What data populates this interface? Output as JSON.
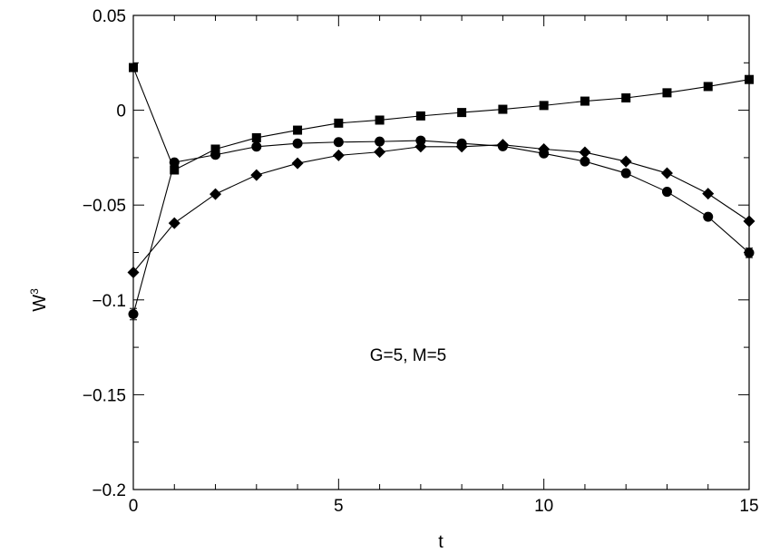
{
  "chart_data": {
    "type": "line",
    "title": "",
    "xlabel": "t",
    "ylabel": "W",
    "ylabel_superscript": "3",
    "annotation": "G=5, M=5",
    "xlim": [
      0,
      15
    ],
    "ylim": [
      -0.2,
      0.05
    ],
    "xticks": [
      0,
      5,
      10,
      15
    ],
    "xtick_labels": [
      "0",
      "5",
      "10",
      "15"
    ],
    "yticks": [
      -0.2,
      -0.15,
      -0.1,
      -0.05,
      0,
      0.05
    ],
    "ytick_labels": [
      "−0.2",
      "−0.15",
      "−0.1",
      "−0.05",
      "0",
      "0.05"
    ],
    "x_minor_step": 1,
    "y_minor_step": 0.025,
    "grid": false,
    "x": [
      0,
      1,
      2,
      3,
      4,
      5,
      6,
      7,
      8,
      9,
      10,
      11,
      12,
      13,
      14,
      15
    ],
    "series": [
      {
        "marker": "square",
        "values": [
          0.0225,
          -0.0315,
          -0.0205,
          -0.0145,
          -0.0105,
          -0.0068,
          -0.0052,
          -0.003,
          -0.0012,
          0.0005,
          0.0025,
          0.0048,
          0.0065,
          0.0092,
          0.0125,
          0.0162
        ]
      },
      {
        "marker": "circle",
        "values": [
          -0.1075,
          -0.0275,
          -0.0235,
          -0.0192,
          -0.0175,
          -0.0168,
          -0.0165,
          -0.016,
          -0.0175,
          -0.019,
          -0.0228,
          -0.027,
          -0.0332,
          -0.043,
          -0.0562,
          -0.0752
        ],
        "error": [
          0.003,
          0,
          0,
          0,
          0,
          0,
          0,
          0,
          0,
          0,
          0,
          0,
          0,
          0,
          0,
          0.0025
        ]
      },
      {
        "marker": "diamond",
        "values": [
          -0.0855,
          -0.0595,
          -0.0442,
          -0.0342,
          -0.028,
          -0.0238,
          -0.022,
          -0.0192,
          -0.0192,
          -0.0182,
          -0.0205,
          -0.0222,
          -0.027,
          -0.0332,
          -0.044,
          -0.0585
        ]
      }
    ]
  }
}
